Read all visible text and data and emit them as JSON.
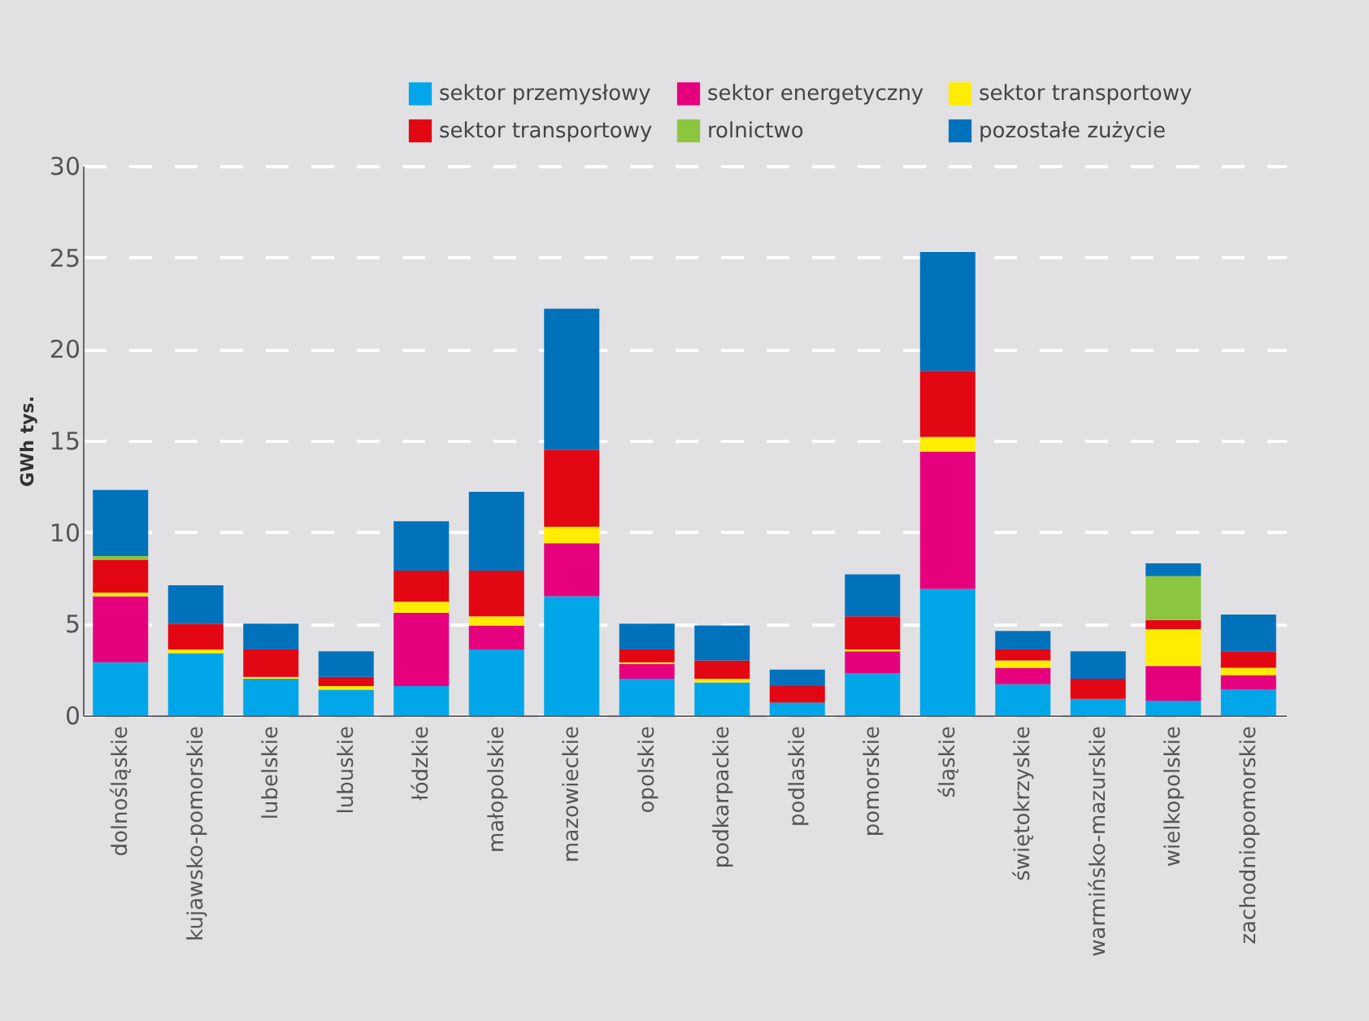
{
  "chart_data": {
    "type": "bar",
    "stacked": true,
    "ylabel": "GWh tys.",
    "ylim": [
      0,
      30
    ],
    "yticks": [
      0,
      5,
      10,
      15,
      20,
      25,
      30
    ],
    "grid": "y",
    "legend": "top right",
    "categories": [
      "dolnośląskie",
      "kujawsko-pomorskie",
      "lubelskie",
      "lubuskie",
      "łódzkie",
      "małopolskie",
      "mazowieckie",
      "opolskie",
      "podkarpackie",
      "podlaskie",
      "pomorskie",
      "śląskie",
      "świętokrzyskie",
      "warmińsko-mazurskie",
      "wielkopolskie",
      "zachodniopomorskie"
    ],
    "series": [
      {
        "name": "sektor przemysłowy",
        "color": "#00a6e8",
        "values": [
          2.9,
          3.4,
          2.0,
          1.4,
          1.6,
          3.6,
          6.5,
          2.0,
          1.8,
          0.7,
          2.3,
          6.9,
          1.7,
          0.9,
          0.8,
          1.4
        ]
      },
      {
        "name": "sektor energetyczny",
        "color": "#e6007e",
        "values": [
          3.6,
          0,
          0,
          0,
          4.0,
          1.3,
          2.9,
          0.8,
          0,
          0,
          1.2,
          7.5,
          0.9,
          0,
          1.9,
          0.8
        ]
      },
      {
        "name": "sektor transportowy",
        "color": "#ffed00",
        "values": [
          0.2,
          0.2,
          0.1,
          0.2,
          0.6,
          0.5,
          0.9,
          0.1,
          0.2,
          0,
          0.1,
          0.8,
          0.4,
          0,
          2.0,
          0.4
        ]
      },
      {
        "name": "sektor transportowy",
        "color": "#e30613",
        "values": [
          1.8,
          1.4,
          1.5,
          0.5,
          1.7,
          2.5,
          4.2,
          0.7,
          1.0,
          0.9,
          1.8,
          3.6,
          0.6,
          1.1,
          0.5,
          0.9
        ]
      },
      {
        "name": "rolnictwo",
        "color": "#8cc63f",
        "values": [
          0.2,
          0,
          0,
          0,
          0,
          0,
          0,
          0,
          0,
          0,
          0,
          0,
          0,
          0,
          2.4,
          0
        ]
      },
      {
        "name": "pozostałe zużycie",
        "color": "#0072bc",
        "values": [
          3.6,
          2.1,
          1.4,
          1.4,
          2.7,
          4.3,
          7.7,
          1.4,
          1.9,
          0.9,
          2.3,
          6.5,
          1.0,
          1.5,
          0.7,
          2.0
        ]
      }
    ]
  }
}
